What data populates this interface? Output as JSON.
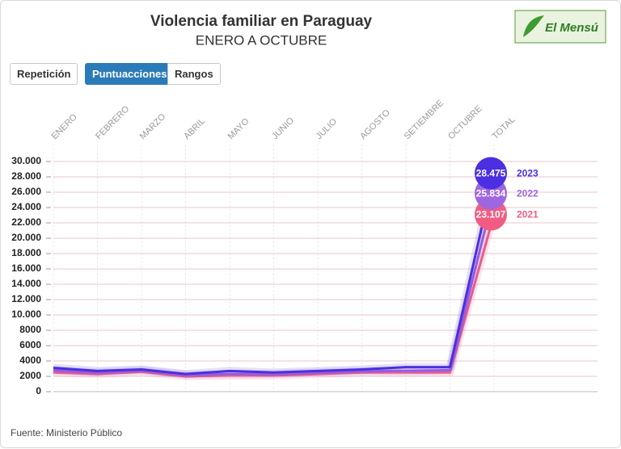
{
  "logo": "El Mensú",
  "buttons": [
    "Repetición",
    "Puntuacciones",
    "Rangos"
  ],
  "chart_data": {
    "type": "line",
    "title": "Violencia familiar en Paraguay",
    "subtitle": "ENERO A OCTUBRE",
    "source": "Fuente: Ministerio Público",
    "categories": [
      "ENERO",
      "FEBRERO",
      "MARZO",
      "ABRIL",
      "MAYO",
      "JUNIO",
      "JULIO",
      "AGOSTO",
      "SETIEMBRE",
      "OCTUBRE",
      "TOTAL"
    ],
    "series": [
      {
        "name": "2023",
        "color": "#4b2fe0",
        "values": [
          3100,
          2700,
          2900,
          2300,
          2700,
          2500,
          2700,
          2900,
          3200,
          3200,
          28475
        ],
        "value_labels": [
          null,
          null,
          null,
          null,
          null,
          null,
          null,
          null,
          null,
          null,
          "28.475"
        ]
      },
      {
        "name": "2022",
        "color": "#a066e0",
        "values": [
          2800,
          2500,
          2800,
          2200,
          2300,
          2300,
          2500,
          2700,
          2700,
          2800,
          25834
        ],
        "value_labels": [
          null,
          null,
          null,
          null,
          null,
          null,
          null,
          null,
          null,
          null,
          "25.834"
        ]
      },
      {
        "name": "2021",
        "color": "#f25c84",
        "values": [
          2500,
          2300,
          2600,
          2000,
          2100,
          2100,
          2300,
          2500,
          2500,
          2500,
          23107
        ],
        "value_labels": [
          null,
          null,
          null,
          null,
          null,
          null,
          null,
          null,
          null,
          null,
          "23.107"
        ]
      }
    ],
    "ylim": [
      0,
      30000
    ],
    "yticks": [
      0,
      2000,
      4000,
      6000,
      8000,
      {
        "value": 10000,
        "label": "10.000"
      },
      {
        "value": 12000,
        "label": "12.000"
      },
      {
        "value": 14000,
        "label": "14.000"
      },
      {
        "value": 16000,
        "label": "16.000"
      },
      {
        "value": 18000,
        "label": "18.000"
      },
      {
        "value": 20000,
        "label": "20.000"
      },
      {
        "value": 22000,
        "label": "22.000"
      },
      {
        "value": 24000,
        "label": "24.000"
      },
      {
        "value": 26000,
        "label": "26.000"
      },
      {
        "value": 28000,
        "label": "28.000"
      },
      {
        "value": 30000,
        "label": "30.000"
      }
    ],
    "grid": true
  }
}
